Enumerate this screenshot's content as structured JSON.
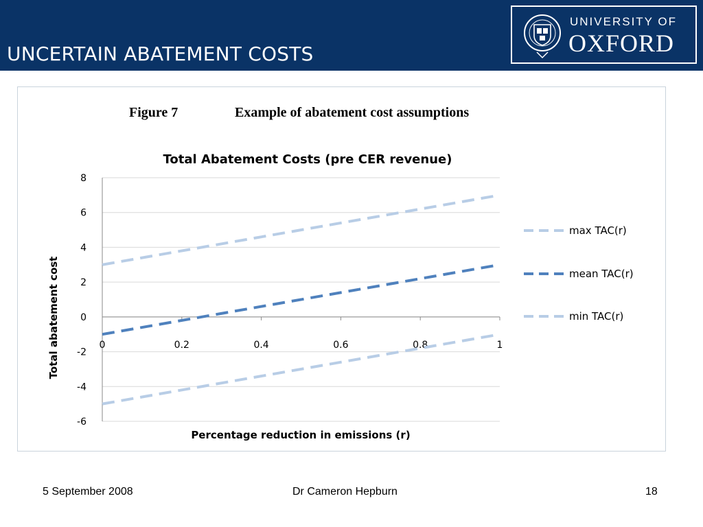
{
  "slide": {
    "title": "UNCERTAIN ABATEMENT COSTS",
    "logo_line1": "UNIVERSITY OF",
    "logo_line2": "OXFORD"
  },
  "figure": {
    "caption_number": "Figure 7",
    "caption_text": "Example of abatement cost assumptions"
  },
  "chart_data": {
    "type": "line",
    "title": "Total Abatement Costs (pre CER revenue)",
    "xlabel": "Percentage reduction in emissions  (r)",
    "ylabel": "Total abatement cost",
    "x": [
      0,
      1
    ],
    "xlim": [
      0,
      1
    ],
    "ylim": [
      -6,
      8
    ],
    "xticks": [
      "0",
      "0.2",
      "0.4",
      "0.6",
      "0.8",
      "1"
    ],
    "xtick_values": [
      0,
      0.2,
      0.4,
      0.6,
      0.8,
      1
    ],
    "yticks": [
      "8",
      "6",
      "4",
      "2",
      "0",
      "-2",
      "-4",
      "-6"
    ],
    "ytick_values": [
      8,
      6,
      4,
      2,
      0,
      -2,
      -4,
      -6
    ],
    "grid": "horizontal",
    "legend_position": "right",
    "series": [
      {
        "name": "max TAC(r)",
        "values": [
          3,
          7
        ],
        "color": "#b8cde6",
        "style": "dashed"
      },
      {
        "name": "mean TAC(r)",
        "values": [
          -1,
          3
        ],
        "color": "#4f81bd",
        "style": "dashed"
      },
      {
        "name": "min TAC(r)",
        "values": [
          -5,
          -1
        ],
        "color": "#b8cde6",
        "style": "dashed"
      }
    ]
  },
  "footer": {
    "date": "5 September 2008",
    "author": "Dr Cameron Hepburn",
    "page": "18"
  }
}
